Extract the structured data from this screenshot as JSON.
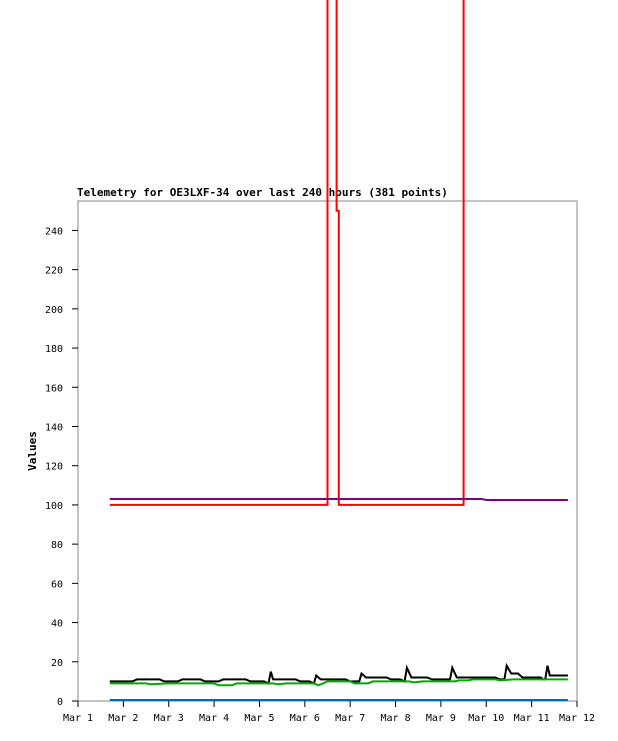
{
  "chart_data": {
    "type": "line",
    "title": "Telemetry for OE3LXF-34 over last 240 hours (381 points)",
    "xlabel": "",
    "ylabel": "Values",
    "xlim": [
      0,
      11
    ],
    "ylim": [
      0,
      255
    ],
    "x_ticks": [
      {
        "label": "Mar 1",
        "value": 0
      },
      {
        "label": "Mar 2",
        "value": 1
      },
      {
        "label": "Mar 3",
        "value": 2
      },
      {
        "label": "Mar 4",
        "value": 3
      },
      {
        "label": "Mar 5",
        "value": 4
      },
      {
        "label": "Mar 6",
        "value": 5
      },
      {
        "label": "Mar 7",
        "value": 6
      },
      {
        "label": "Mar 8",
        "value": 7
      },
      {
        "label": "Mar 9",
        "value": 8
      },
      {
        "label": "Mar 10",
        "value": 9
      },
      {
        "label": "Mar 11",
        "value": 10
      },
      {
        "label": "Mar 12",
        "value": 11
      }
    ],
    "y_ticks": [
      0,
      20,
      40,
      60,
      80,
      100,
      120,
      140,
      160,
      180,
      200,
      220,
      240
    ],
    "grid": false,
    "legend": "none",
    "series": [
      {
        "color": "#ff0000",
        "points": [
          [
            0.7,
            100
          ],
          [
            5.5,
            100
          ],
          [
            5.5,
            360
          ],
          [
            5.7,
            360
          ],
          [
            5.7,
            250
          ],
          [
            5.75,
            250
          ],
          [
            5.75,
            100
          ],
          [
            8.5,
            100
          ],
          [
            8.5,
            360
          ]
        ]
      },
      {
        "color": "#800080",
        "points": [
          [
            0.7,
            103
          ],
          [
            8.9,
            103
          ],
          [
            9.0,
            102.5
          ],
          [
            10.8,
            102.5
          ]
        ]
      },
      {
        "color": "#000000",
        "points": [
          [
            0.7,
            10
          ],
          [
            1.2,
            10
          ],
          [
            1.3,
            11
          ],
          [
            1.8,
            11
          ],
          [
            1.9,
            10
          ],
          [
            2.2,
            10
          ],
          [
            2.3,
            11
          ],
          [
            2.7,
            11
          ],
          [
            2.8,
            10
          ],
          [
            3.1,
            10
          ],
          [
            3.2,
            11
          ],
          [
            3.7,
            11
          ],
          [
            3.8,
            10
          ],
          [
            4.1,
            10
          ],
          [
            4.2,
            9
          ],
          [
            4.25,
            15
          ],
          [
            4.3,
            11
          ],
          [
            4.8,
            11
          ],
          [
            4.9,
            10
          ],
          [
            5.1,
            10
          ],
          [
            5.2,
            9
          ],
          [
            5.25,
            13
          ],
          [
            5.35,
            11
          ],
          [
            5.9,
            11
          ],
          [
            6.0,
            10
          ],
          [
            6.2,
            10
          ],
          [
            6.25,
            14
          ],
          [
            6.35,
            12
          ],
          [
            6.8,
            12
          ],
          [
            6.9,
            11
          ],
          [
            7.1,
            11
          ],
          [
            7.2,
            10
          ],
          [
            7.25,
            17
          ],
          [
            7.35,
            12
          ],
          [
            7.7,
            12
          ],
          [
            7.8,
            11
          ],
          [
            8.2,
            11
          ],
          [
            8.25,
            17
          ],
          [
            8.35,
            12
          ],
          [
            9.2,
            12
          ],
          [
            9.3,
            11
          ],
          [
            9.4,
            11
          ],
          [
            9.45,
            18
          ],
          [
            9.55,
            14
          ],
          [
            9.7,
            14
          ],
          [
            9.8,
            12
          ],
          [
            10.2,
            12
          ],
          [
            10.25,
            11
          ],
          [
            10.3,
            11
          ],
          [
            10.35,
            18
          ],
          [
            10.4,
            13
          ],
          [
            10.8,
            13
          ]
        ]
      },
      {
        "color": "#00aa00",
        "points": [
          [
            0.7,
            9
          ],
          [
            1.5,
            9
          ],
          [
            1.6,
            8.5
          ],
          [
            2.0,
            9
          ],
          [
            3.0,
            9
          ],
          [
            3.1,
            8
          ],
          [
            3.4,
            8
          ],
          [
            3.5,
            9
          ],
          [
            4.3,
            9
          ],
          [
            4.4,
            8.5
          ],
          [
            4.6,
            9
          ],
          [
            5.2,
            9
          ],
          [
            5.3,
            8
          ],
          [
            5.4,
            9
          ],
          [
            5.5,
            10
          ],
          [
            6.0,
            10
          ],
          [
            6.1,
            9
          ],
          [
            6.4,
            9
          ],
          [
            6.5,
            10
          ],
          [
            7.3,
            10
          ],
          [
            7.4,
            9.5
          ],
          [
            7.6,
            10
          ],
          [
            8.3,
            10
          ],
          [
            8.4,
            10.5
          ],
          [
            8.6,
            10.5
          ],
          [
            8.7,
            11
          ],
          [
            9.2,
            11
          ],
          [
            9.3,
            10.5
          ],
          [
            9.6,
            11
          ],
          [
            10.8,
            11
          ]
        ]
      },
      {
        "color": "#0066cc",
        "points": [
          [
            0.7,
            0.5
          ],
          [
            10.8,
            0.5
          ]
        ]
      }
    ]
  }
}
